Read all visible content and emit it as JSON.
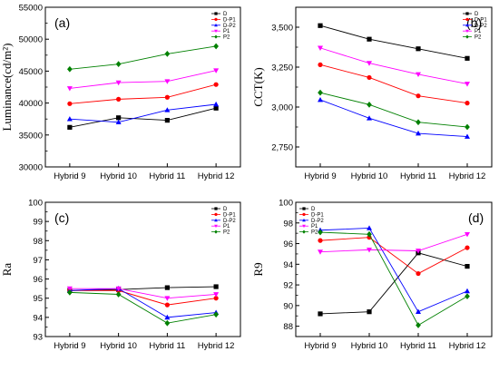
{
  "chart_data": [
    {
      "type": "line",
      "panel": "(a)",
      "ylabel": "Luminance(cd/m²)",
      "xlabel": "",
      "categories": [
        "Hybrid 9",
        "Hybrid 10",
        "Hybrid 11",
        "Hybrid 12"
      ],
      "ylim": [
        30000,
        55000
      ],
      "yticks": [
        30000,
        35000,
        40000,
        45000,
        50000,
        55000
      ],
      "legend_position": "top-right",
      "series": [
        {
          "name": "D",
          "color": "#000000",
          "marker": "square",
          "values": [
            36200,
            37700,
            37300,
            39200
          ]
        },
        {
          "name": "D-P1",
          "color": "#ff0000",
          "marker": "circle",
          "values": [
            39900,
            40600,
            40900,
            42900
          ]
        },
        {
          "name": "D-P2",
          "color": "#0000ff",
          "marker": "triangle-up",
          "values": [
            37500,
            37000,
            38900,
            39800
          ]
        },
        {
          "name": "P1",
          "color": "#ff00ff",
          "marker": "triangle-down",
          "values": [
            42300,
            43200,
            43400,
            45100
          ]
        },
        {
          "name": "P2",
          "color": "#008000",
          "marker": "diamond",
          "values": [
            45300,
            46100,
            47700,
            48900
          ]
        }
      ]
    },
    {
      "type": "line",
      "panel": "(b)",
      "ylabel": "CCT(K)",
      "xlabel": "",
      "categories": [
        "Hybrid 9",
        "Hybrid 10",
        "Hybrid 11",
        "Hybrid 12"
      ],
      "ylim": [
        2625,
        3625
      ],
      "yticks": [
        2750,
        3000,
        3250,
        3500
      ],
      "legend_position": "top-right",
      "series": [
        {
          "name": "D",
          "color": "#000000",
          "marker": "square",
          "values": [
            3510,
            3425,
            3365,
            3305
          ]
        },
        {
          "name": "D-P1",
          "color": "#ff0000",
          "marker": "circle",
          "values": [
            3265,
            3185,
            3070,
            3025
          ]
        },
        {
          "name": "D-P2",
          "color": "#0000ff",
          "marker": "triangle-up",
          "values": [
            3045,
            2930,
            2835,
            2815
          ]
        },
        {
          "name": "P1",
          "color": "#ff00ff",
          "marker": "triangle-down",
          "values": [
            3370,
            3275,
            3205,
            3145
          ]
        },
        {
          "name": "P2",
          "color": "#008000",
          "marker": "diamond",
          "values": [
            3090,
            3015,
            2905,
            2875
          ]
        }
      ]
    },
    {
      "type": "line",
      "panel": "(c)",
      "ylabel": "Ra",
      "xlabel": "",
      "categories": [
        "Hybrid 9",
        "Hybrid 10",
        "Hybrid 11",
        "Hybrid 12"
      ],
      "ylim": [
        93,
        100
      ],
      "yticks": [
        93,
        94,
        95,
        96,
        97,
        98,
        99,
        100
      ],
      "legend_position": "top-right",
      "series": [
        {
          "name": "D",
          "color": "#000000",
          "marker": "square",
          "values": [
            95.4,
            95.45,
            95.55,
            95.6
          ]
        },
        {
          "name": "D-P1",
          "color": "#ff0000",
          "marker": "circle",
          "values": [
            95.4,
            95.4,
            94.65,
            95.0
          ]
        },
        {
          "name": "D-P2",
          "color": "#0000ff",
          "marker": "triangle-up",
          "values": [
            95.4,
            95.5,
            94.0,
            94.25
          ]
        },
        {
          "name": "P1",
          "color": "#ff00ff",
          "marker": "triangle-down",
          "values": [
            95.5,
            95.5,
            95.0,
            95.2
          ]
        },
        {
          "name": "P2",
          "color": "#008000",
          "marker": "diamond",
          "values": [
            95.3,
            95.2,
            93.7,
            94.15
          ]
        }
      ]
    },
    {
      "type": "line",
      "panel": "(d)",
      "ylabel": "R9",
      "xlabel": "",
      "categories": [
        "Hybrid 9",
        "Hybrid 10",
        "Hybrid 11",
        "Hybrid 12"
      ],
      "ylim": [
        87,
        100
      ],
      "yticks": [
        88,
        90,
        92,
        94,
        96,
        98,
        100
      ],
      "legend_position": "top-left",
      "series": [
        {
          "name": "D",
          "color": "#000000",
          "marker": "square",
          "values": [
            89.2,
            89.4,
            95.1,
            93.8
          ]
        },
        {
          "name": "D-P1",
          "color": "#ff0000",
          "marker": "circle",
          "values": [
            96.3,
            96.6,
            93.1,
            95.6
          ]
        },
        {
          "name": "D-P2",
          "color": "#0000ff",
          "marker": "triangle-up",
          "values": [
            97.3,
            97.5,
            89.4,
            91.4
          ]
        },
        {
          "name": "P1",
          "color": "#ff00ff",
          "marker": "triangle-down",
          "values": [
            95.2,
            95.4,
            95.3,
            96.9
          ]
        },
        {
          "name": "P2",
          "color": "#008000",
          "marker": "diamond",
          "values": [
            97.1,
            96.9,
            88.1,
            90.9
          ]
        }
      ]
    }
  ]
}
